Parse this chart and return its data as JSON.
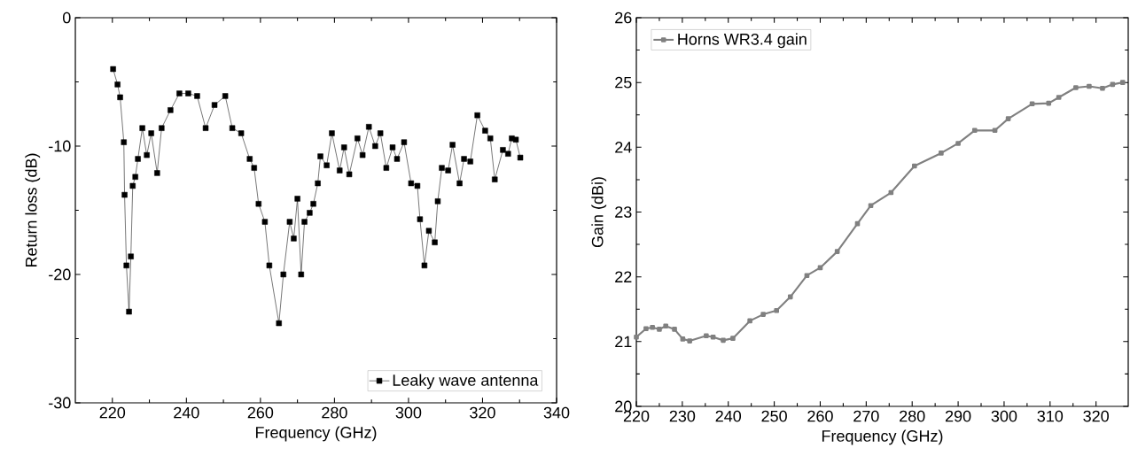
{
  "chart_data": [
    {
      "type": "line",
      "xlabel": "Frequency (GHz)",
      "ylabel": "Return loss (dB)",
      "xlim": [
        210,
        340
      ],
      "ylim": [
        -30,
        0
      ],
      "xticks": [
        220,
        240,
        260,
        280,
        300,
        320,
        340
      ],
      "yticks": [
        -30,
        -20,
        -10,
        0
      ],
      "legend": "bottom right",
      "marker": "square",
      "series": [
        {
          "name": "Leaky wave antenna",
          "color": "#000000",
          "x": [
            220.2,
            221.4,
            222.1,
            223.1,
            223.3,
            223.8,
            224.5,
            225.0,
            225.5,
            226.2,
            226.9,
            228.1,
            229.3,
            230.5,
            232.1,
            233.3,
            235.7,
            238.1,
            240.5,
            242.9,
            245.2,
            247.6,
            250.5,
            252.4,
            254.8,
            257.1,
            258.3,
            259.5,
            261.2,
            262.4,
            265.0,
            266.2,
            267.9,
            269.0,
            270.0,
            271.0,
            271.9,
            273.3,
            274.3,
            275.5,
            276.2,
            277.9,
            279.3,
            281.4,
            282.6,
            284.0,
            286.2,
            287.6,
            289.3,
            291.0,
            292.4,
            294.0,
            295.7,
            296.9,
            298.8,
            300.7,
            302.4,
            303.1,
            304.3,
            305.5,
            307.1,
            307.9,
            309.0,
            310.7,
            311.9,
            313.8,
            315.0,
            316.7,
            318.6,
            320.7,
            322.1,
            323.3,
            325.5,
            326.9,
            327.9,
            329.0,
            330.2
          ],
          "values": [
            -4.0,
            -5.2,
            -6.2,
            -9.7,
            -13.8,
            -19.3,
            -22.9,
            -18.6,
            -13.1,
            -12.4,
            -11.0,
            -8.6,
            -10.7,
            -9.0,
            -12.1,
            -8.6,
            -7.2,
            -5.9,
            -5.9,
            -6.1,
            -8.6,
            -6.8,
            -6.1,
            -8.6,
            -9.0,
            -11.0,
            -11.7,
            -14.5,
            -15.9,
            -19.3,
            -23.8,
            -20.0,
            -15.9,
            -17.2,
            -14.1,
            -20.0,
            -15.9,
            -15.2,
            -14.5,
            -12.9,
            -10.8,
            -11.5,
            -9.0,
            -11.9,
            -10.1,
            -12.2,
            -9.4,
            -10.7,
            -8.5,
            -10.0,
            -9.0,
            -11.7,
            -10.1,
            -11.0,
            -9.7,
            -12.9,
            -13.1,
            -15.7,
            -19.3,
            -16.6,
            -17.5,
            -14.3,
            -11.7,
            -11.9,
            -9.9,
            -12.9,
            -11.0,
            -11.2,
            -7.6,
            -8.8,
            -9.4,
            -12.6,
            -10.3,
            -10.6,
            -9.4,
            -9.5,
            -10.9
          ]
        }
      ]
    },
    {
      "type": "line",
      "xlabel": "Frequency (GHz)",
      "ylabel": "Gain (dBi)",
      "xlim": [
        220,
        327
      ],
      "ylim": [
        20,
        26
      ],
      "xticks": [
        220,
        230,
        240,
        250,
        260,
        270,
        280,
        290,
        300,
        310,
        320
      ],
      "yticks": [
        20,
        21,
        22,
        23,
        24,
        25,
        26
      ],
      "legend": "top left",
      "marker": "square",
      "series": [
        {
          "name": "Horns WR3.4 gain",
          "color": "#808080",
          "x": [
            220.0,
            222.1,
            223.5,
            225.0,
            226.4,
            228.3,
            230.1,
            231.6,
            235.2,
            236.7,
            238.9,
            241.0,
            244.7,
            247.6,
            250.5,
            253.5,
            257.1,
            260.0,
            263.7,
            268.1,
            271.0,
            275.4,
            280.5,
            286.3,
            290.0,
            293.6,
            298.0,
            300.9,
            306.1,
            309.7,
            311.9,
            315.6,
            318.5,
            321.4,
            323.6,
            325.8
          ],
          "values": [
            21.07,
            21.2,
            21.22,
            21.19,
            21.24,
            21.19,
            21.04,
            21.01,
            21.09,
            21.07,
            21.02,
            21.05,
            21.32,
            21.42,
            21.48,
            21.69,
            22.02,
            22.14,
            22.39,
            22.82,
            23.1,
            23.3,
            23.71,
            23.91,
            24.06,
            24.26,
            24.26,
            24.44,
            24.67,
            24.68,
            24.77,
            24.92,
            24.94,
            24.91,
            24.97,
            25.0
          ]
        }
      ]
    }
  ]
}
